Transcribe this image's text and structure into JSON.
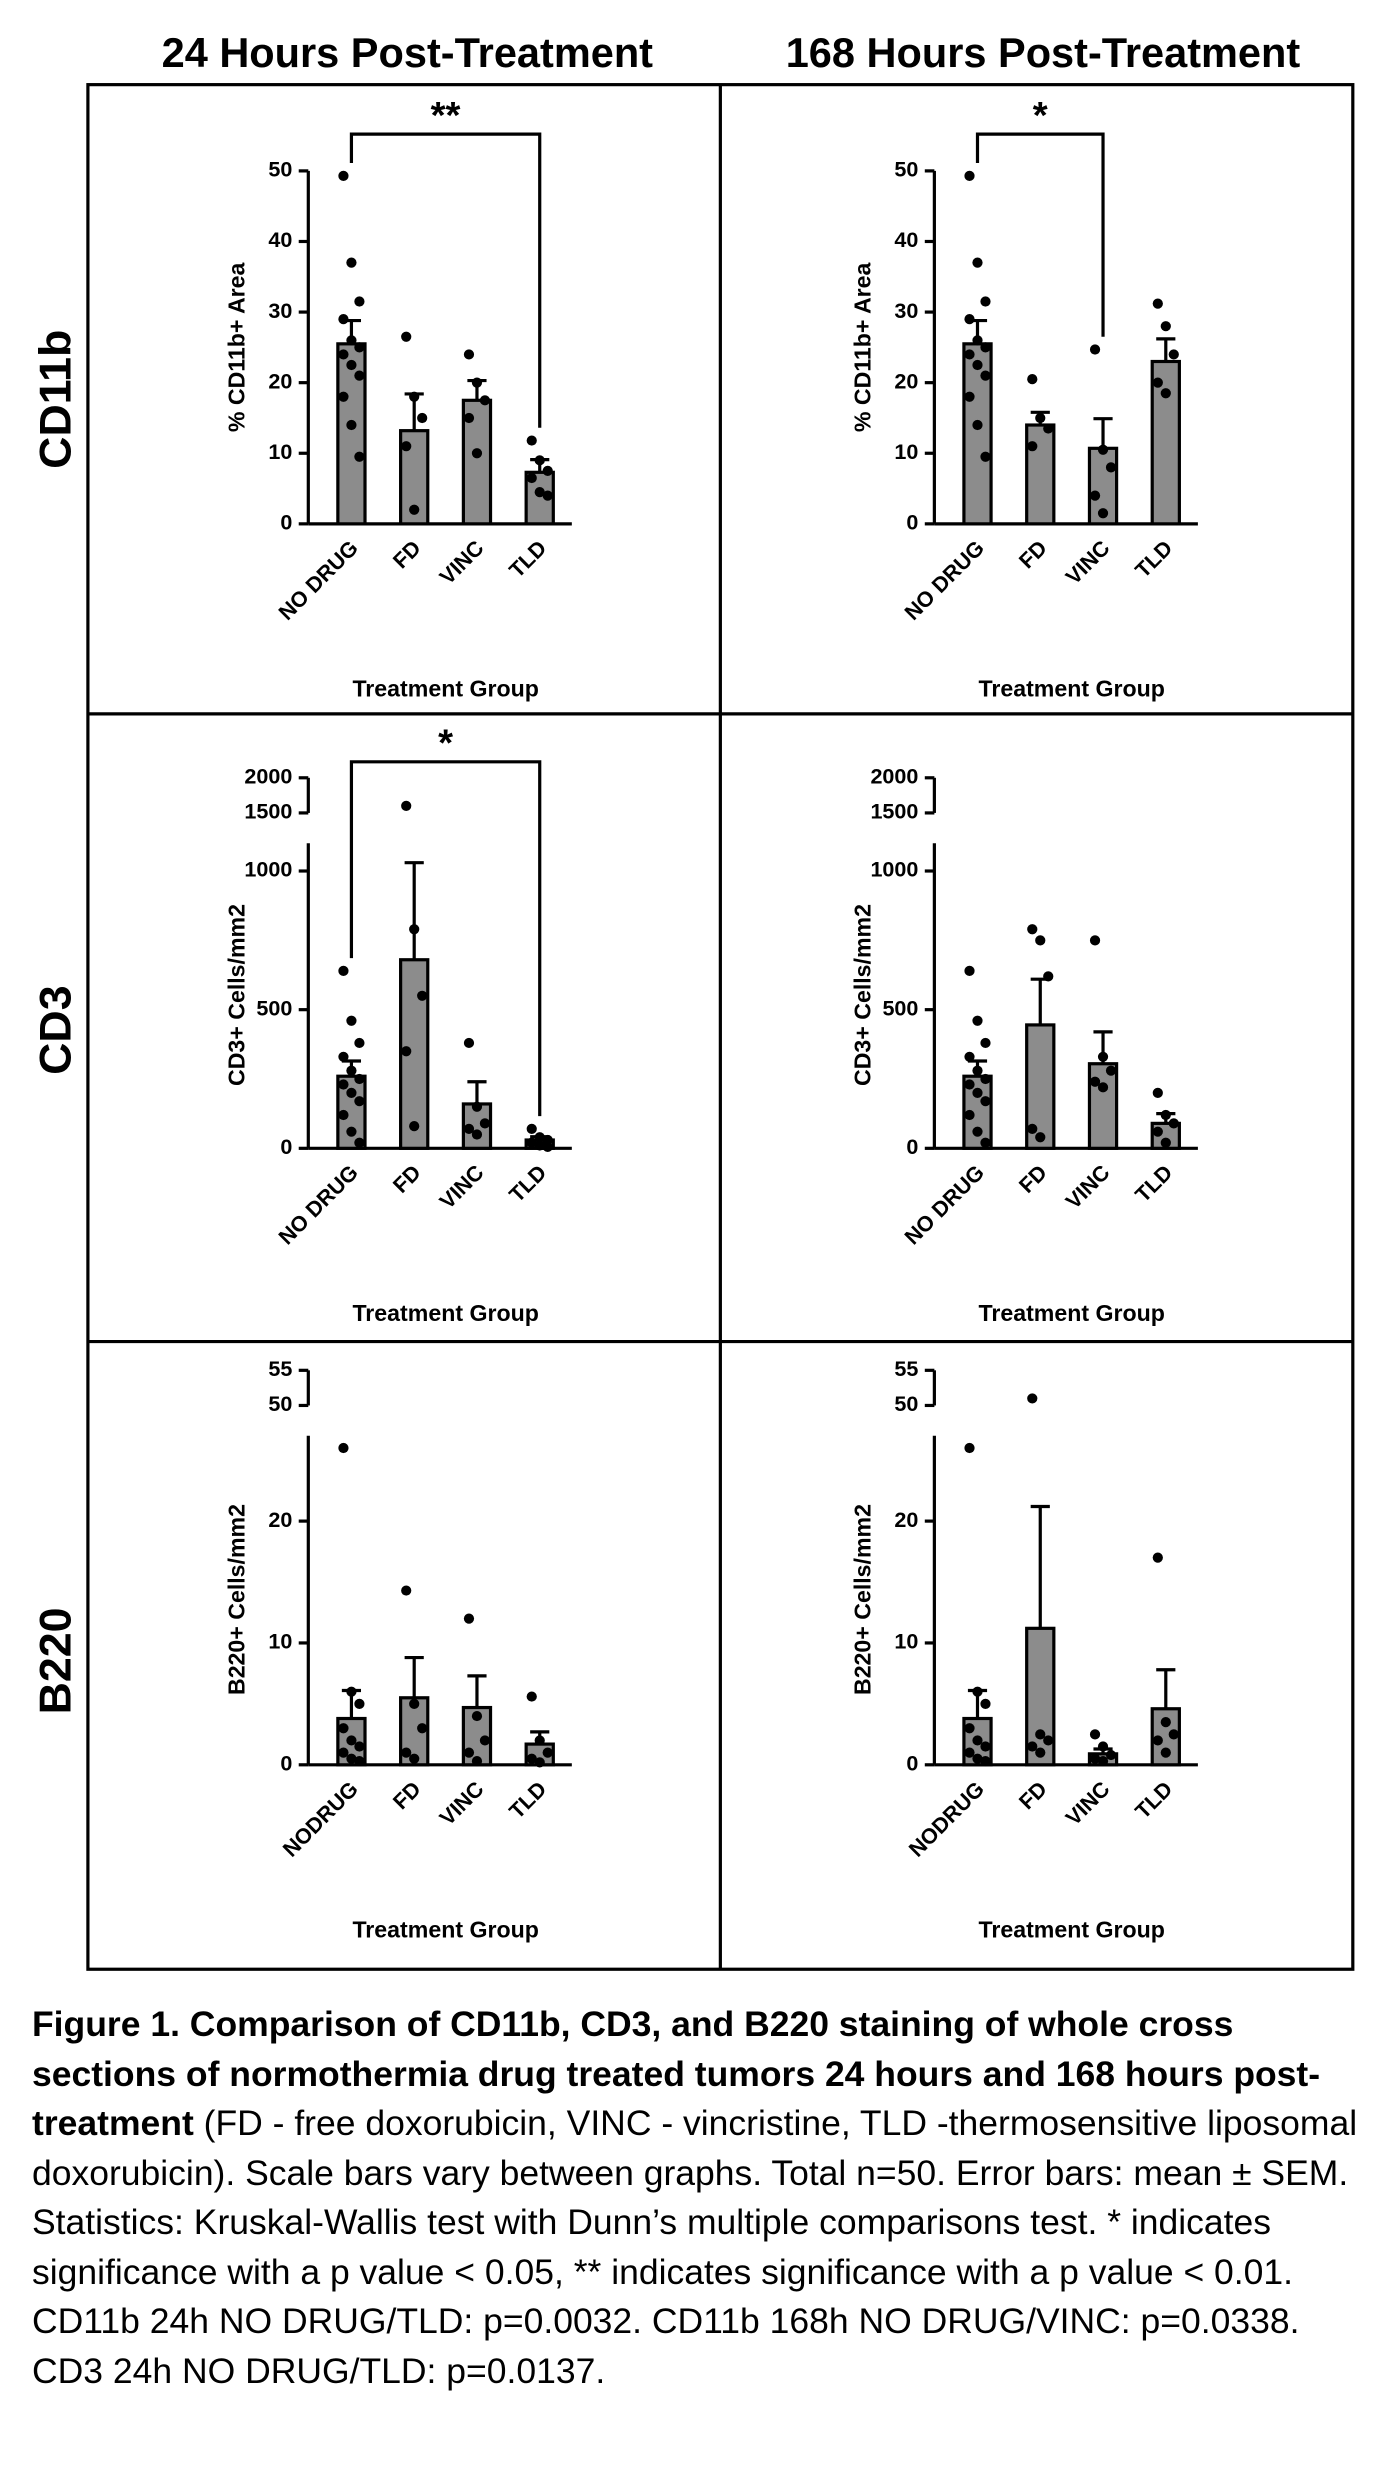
{
  "column_titles": [
    "24 Hours Post-Treatment",
    "168 Hours Post-Treatment"
  ],
  "row_labels": [
    "CD11b",
    "CD3",
    "B220"
  ],
  "chart_data": [
    {
      "type": "bar",
      "ylabel": "% CD11b+ Area",
      "xlabel": "Treatment Group",
      "color": "#8c8c8c",
      "categories": [
        "NO DRUG",
        "FD",
        "VINC",
        "TLD"
      ],
      "values": [
        25.5,
        13.2,
        17.5,
        7.3
      ],
      "errors": [
        3.3,
        5.2,
        2.8,
        1.8
      ],
      "points": [
        [
          49.3,
          37,
          31.5,
          29,
          26,
          25,
          24,
          22.5,
          21,
          18,
          14,
          9.5
        ],
        [
          26.5,
          18,
          15,
          11,
          2
        ],
        [
          24,
          20,
          17.5,
          15,
          10
        ],
        [
          11.8,
          9,
          7.5,
          6.5,
          4.5,
          4
        ]
      ],
      "ylim": [
        0,
        50
      ],
      "yticks": [
        0,
        10,
        20,
        30,
        40,
        50
      ],
      "brackets": [
        {
          "label": "**",
          "between": [
            "NO DRUG",
            "TLD"
          ]
        }
      ]
    },
    {
      "type": "bar",
      "ylabel": "% CD11b+ Area",
      "xlabel": "Treatment Group",
      "color": "#8c8c8c",
      "categories": [
        "NO DRUG",
        "FD",
        "VINC",
        "TLD"
      ],
      "values": [
        25.5,
        14,
        10.7,
        23
      ],
      "errors": [
        3.3,
        1.8,
        4.2,
        3.2
      ],
      "points": [
        [
          49.3,
          37,
          31.5,
          29,
          26,
          25,
          24,
          22.5,
          21,
          18,
          14,
          9.5
        ],
        [
          20.5,
          15,
          13.5,
          11
        ],
        [
          24.7,
          10.5,
          8,
          4,
          1.5
        ],
        [
          31.2,
          28,
          24,
          20,
          18.5
        ]
      ],
      "ylim": [
        0,
        50
      ],
      "yticks": [
        0,
        10,
        20,
        30,
        40,
        50
      ],
      "brackets": [
        {
          "label": "*",
          "between": [
            "NO DRUG",
            "VINC"
          ]
        }
      ]
    },
    {
      "type": "bar",
      "ylabel": "CD3+ Cells/mm2",
      "xlabel": "Treatment Group",
      "color": "#8c8c8c",
      "categories": [
        "NO DRUG",
        "FD",
        "VINC",
        "TLD"
      ],
      "values": [
        260,
        680,
        160,
        30
      ],
      "errors": [
        55,
        350,
        80,
        12
      ],
      "points": [
        [
          640,
          460,
          380,
          330,
          280,
          250,
          230,
          200,
          170,
          120,
          60,
          20
        ],
        [
          1600,
          790,
          550,
          350,
          80
        ],
        [
          380,
          150,
          90,
          70,
          50
        ],
        [
          70,
          40,
          30,
          20,
          10,
          5
        ]
      ],
      "ylim": [
        0,
        1100
      ],
      "yticks": [
        0,
        500,
        1000
      ],
      "ylim_break": [
        1500,
        2000
      ],
      "yticks_break": [
        1500,
        2000
      ],
      "brackets": [
        {
          "label": "*",
          "between": [
            "NO DRUG",
            "TLD"
          ]
        }
      ]
    },
    {
      "type": "bar",
      "ylabel": "CD3+ Cells/mm2",
      "xlabel": "Treatment Group",
      "color": "#8c8c8c",
      "categories": [
        "NO DRUG",
        "FD",
        "VINC",
        "TLD"
      ],
      "values": [
        260,
        445,
        305,
        90
      ],
      "errors": [
        55,
        165,
        115,
        35
      ],
      "points": [
        [
          640,
          460,
          380,
          330,
          280,
          250,
          230,
          200,
          170,
          120,
          60,
          20
        ],
        [
          790,
          750,
          620,
          70,
          40
        ],
        [
          750,
          330,
          280,
          240,
          220
        ],
        [
          200,
          120,
          90,
          60,
          20
        ]
      ],
      "ylim": [
        0,
        1100
      ],
      "yticks": [
        0,
        500,
        1000
      ],
      "ylim_break": [
        1500,
        2000
      ],
      "yticks_break": [
        1500,
        2000
      ]
    },
    {
      "type": "bar",
      "ylabel": "B220+ Cells/mm2",
      "xlabel": "Treatment Group",
      "color": "#8c8c8c",
      "categories": [
        "NODRUG",
        "FD",
        "VINC",
        "TLD"
      ],
      "values": [
        3.8,
        5.5,
        4.7,
        1.7
      ],
      "errors": [
        2.3,
        3.3,
        2.6,
        1
      ],
      "points": [
        [
          26,
          6,
          5,
          3,
          2,
          1.5,
          1,
          0.5,
          0.3
        ],
        [
          14.3,
          5,
          3,
          1,
          0.5
        ],
        [
          12,
          4,
          2,
          1,
          0.3
        ],
        [
          5.6,
          2,
          1,
          0.5,
          0.2
        ]
      ],
      "ylim": [
        0,
        27
      ],
      "yticks": [
        0,
        10,
        20
      ],
      "ylim_break": [
        50,
        55
      ],
      "yticks_break": [
        50,
        55
      ]
    },
    {
      "type": "bar",
      "ylabel": "B220+ Cells/mm2",
      "xlabel": "Treatment Group",
      "color": "#8c8c8c",
      "categories": [
        "NODRUG",
        "FD",
        "VINC",
        "TLD"
      ],
      "values": [
        3.8,
        11.2,
        0.9,
        4.6
      ],
      "errors": [
        2.3,
        10,
        0.4,
        3.2
      ],
      "points": [
        [
          26,
          6,
          5,
          3,
          2,
          1.5,
          1,
          0.5,
          0.3
        ],
        [
          51,
          2.5,
          2,
          1.5,
          1
        ],
        [
          2.5,
          1.5,
          0.8,
          0.5,
          0.3
        ],
        [
          17,
          3.5,
          2.5,
          2,
          1
        ]
      ],
      "ylim": [
        0,
        27
      ],
      "yticks": [
        0,
        10,
        20
      ],
      "ylim_break": [
        50,
        55
      ],
      "yticks_break": [
        50,
        55
      ]
    }
  ],
  "caption": {
    "label": "Figure 1. Comparison of CD11b, CD3, and B220 staining of whole cross sections of normothermia drug treated tumors 24 hours and 168 hours post-treatment",
    "text": " (FD - free doxorubicin, VINC - vincristine, TLD -thermosensitive liposomal doxorubicin). Scale bars vary between graphs. Total n=50. Error bars: mean ± SEM. Statistics: Kruskal-Wallis test with Dunn’s multiple comparisons test. * indicates significance with a p value < 0.05, ** indicates significance with a p value < 0.01. CD11b 24h NO DRUG/TLD: p=0.0032. CD11b 168h NO DRUG/VINC: p=0.0338. CD3 24h NO DRUG/TLD: p=0.0137."
  }
}
